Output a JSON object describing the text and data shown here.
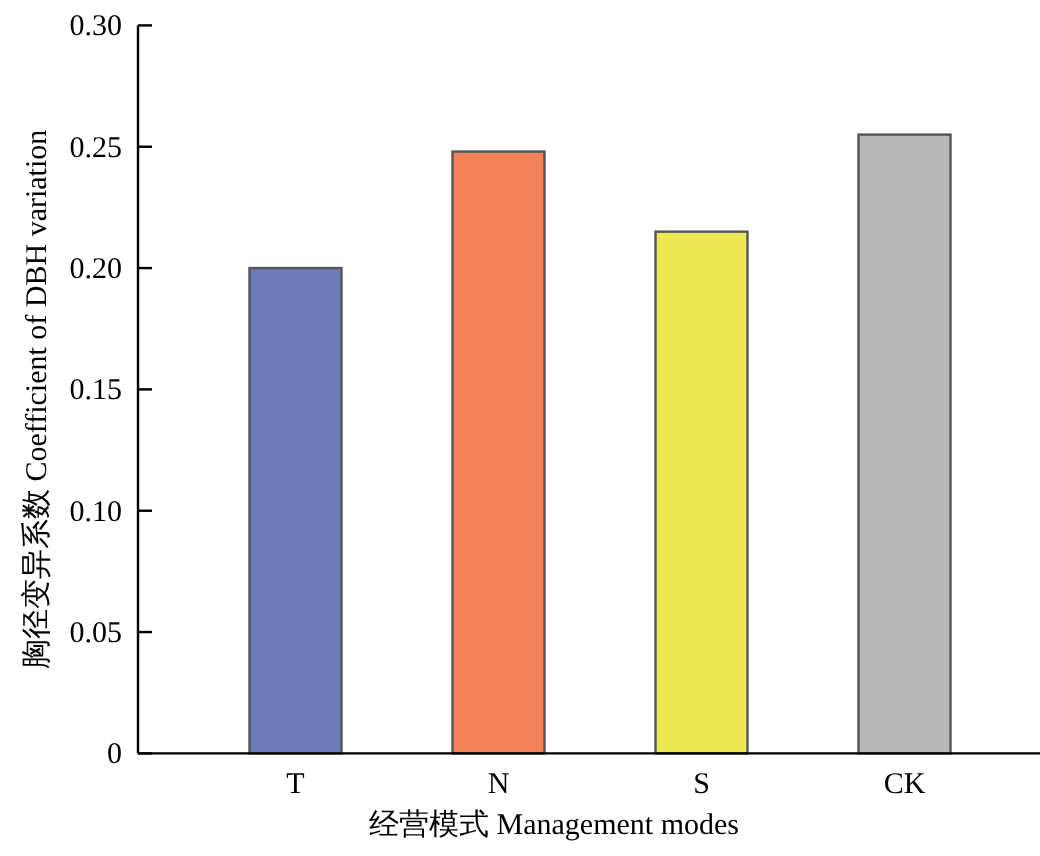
{
  "chart_data": {
    "type": "bar",
    "xlabel": "经营模式 Management modes",
    "ylabel": "胸径变异系数 Coefficient of DBH variation",
    "categories": [
      "T",
      "N",
      "S",
      "CK"
    ],
    "values": [
      0.2,
      0.248,
      0.215,
      0.255
    ],
    "colors": [
      "#6e7bbb",
      "#f38159",
      "#ece953",
      "#b9b9b9"
    ],
    "ylim": [
      0,
      0.3
    ],
    "yticks": [
      {
        "value": 0,
        "label": "0"
      },
      {
        "value": 0.05,
        "label": "0.05"
      },
      {
        "value": 0.1,
        "label": "0.10"
      },
      {
        "value": 0.15,
        "label": "0.15"
      },
      {
        "value": 0.2,
        "label": "0.20"
      },
      {
        "value": 0.25,
        "label": "0.25"
      },
      {
        "value": 0.3,
        "label": "0.30"
      }
    ],
    "grid": false
  }
}
